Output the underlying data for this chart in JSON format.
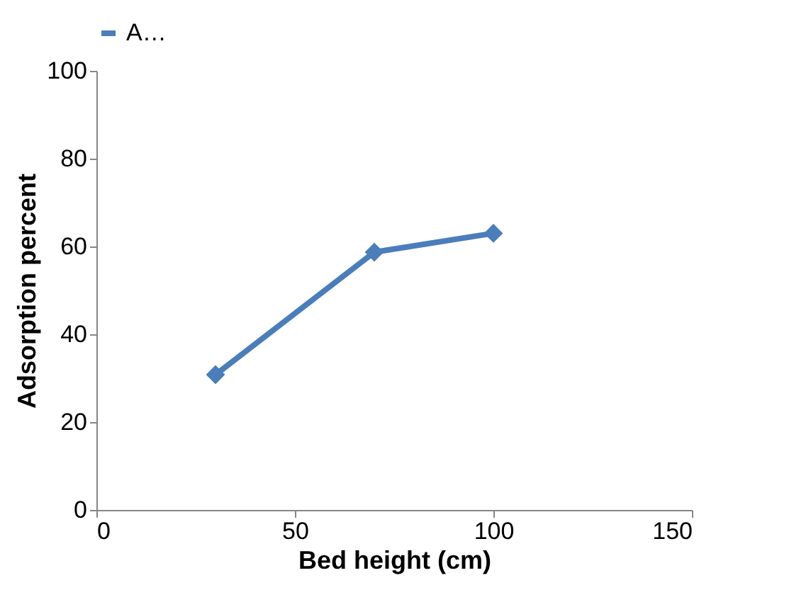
{
  "chart_data": {
    "type": "line",
    "xlabel": "Bed height (cm)",
    "ylabel": "Adsorption percent",
    "x": [
      30,
      70,
      100
    ],
    "series": [
      {
        "name": "A…",
        "color": "#4a7ebb",
        "values": [
          30.8,
          58.7,
          63
        ]
      }
    ],
    "xlim": [
      0,
      150
    ],
    "xticks": [
      0,
      50,
      100,
      150
    ],
    "ylim": [
      0,
      100
    ],
    "yticks": [
      0,
      20,
      40,
      60,
      80,
      100
    ],
    "grid": false,
    "legend": "top",
    "marker": "diamond",
    "line_style": "solid"
  }
}
